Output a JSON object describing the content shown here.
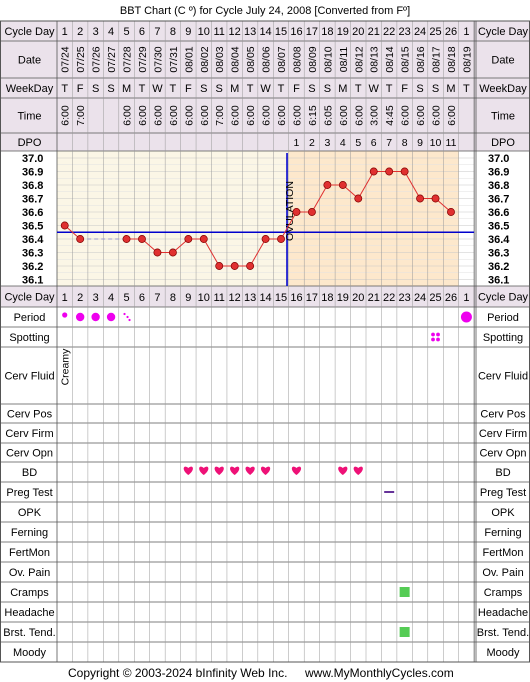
{
  "title": "BBT Chart (C º) for Cycle July 24, 2008  [Converted from Fº]",
  "copyright": "Copyright © 2003-2024 bInfinity Web Inc.",
  "site": "www.MyMonthlyCycles.com",
  "ovulation_label": "OVULATION",
  "row_labels": {
    "cycle_day": "Cycle Day",
    "date": "Date",
    "weekday": "WeekDay",
    "time": "Time",
    "dpo": "DPO",
    "period": "Period",
    "spotting": "Spotting",
    "cerv_fluid": "Cerv Fluid",
    "cerv_pos": "Cerv Pos",
    "cerv_firm": "Cerv Firm",
    "cerv_opn": "Cerv Opn",
    "bd": "BD",
    "preg_test": "Preg Test",
    "opk": "OPK",
    "ferning": "Ferning",
    "fertmon": "FertMon",
    "ov_pain": "Ov. Pain",
    "cramps": "Cramps",
    "headache": "Headache",
    "brst_tend": "Brst. Tend.",
    "moody": "Moody"
  },
  "cycle_days": [
    "1",
    "2",
    "3",
    "4",
    "5",
    "6",
    "7",
    "8",
    "9",
    "10",
    "11",
    "12",
    "13",
    "14",
    "15",
    "16",
    "17",
    "18",
    "19",
    "20",
    "21",
    "22",
    "23",
    "24",
    "25",
    "26",
    "1"
  ],
  "dates": [
    "07/24",
    "07/25",
    "07/26",
    "07/27",
    "07/28",
    "07/29",
    "07/30",
    "07/31",
    "08/01",
    "08/02",
    "08/03",
    "08/04",
    "08/05",
    "08/06",
    "08/07",
    "08/08",
    "08/09",
    "08/10",
    "08/11",
    "08/12",
    "08/13",
    "08/14",
    "08/15",
    "08/16",
    "08/17",
    "08/18",
    "08/19"
  ],
  "weekdays": [
    "T",
    "F",
    "S",
    "S",
    "M",
    "T",
    "W",
    "T",
    "F",
    "S",
    "S",
    "M",
    "T",
    "W",
    "T",
    "F",
    "S",
    "S",
    "M",
    "T",
    "W",
    "T",
    "F",
    "S",
    "S",
    "M",
    "T"
  ],
  "times": [
    "6:00",
    "7:00",
    "",
    "",
    "6:00",
    "6:00",
    "6:00",
    "6:00",
    "6:00",
    "6:00",
    "7:00",
    "6:00",
    "6:00",
    "6:00",
    "6:00",
    "6:00",
    "6:15",
    "6:05",
    "6:00",
    "6:00",
    "3:00",
    "4:45",
    "6:00",
    "6:00",
    "6:00",
    "6:00",
    ""
  ],
  "dpo": [
    "",
    "",
    "",
    "",
    "",
    "",
    "",
    "",
    "",
    "",
    "",
    "",
    "",
    "",
    "",
    "1",
    "2",
    "3",
    "4",
    "5",
    "6",
    "7",
    "8",
    "9",
    "10",
    "11",
    ""
  ],
  "cerv_fluid": [
    "Creamy",
    "",
    "",
    "",
    "",
    "",
    "",
    "",
    "",
    "",
    "",
    "",
    "",
    "",
    "",
    "",
    "",
    "",
    "",
    "",
    "",
    "",
    "",
    "",
    "",
    "",
    ""
  ],
  "temp_axis": [
    "37.0",
    "36.9",
    "36.8",
    "36.7",
    "36.6",
    "36.5",
    "36.4",
    "36.3",
    "36.2",
    "36.1"
  ],
  "colors": {
    "header_bg": "#ebe2eb",
    "luteal_bg": "#fde8cc",
    "follicular_bg": "#fbf6e6",
    "temp_line": "#e03030",
    "coverline": "#0000cc",
    "period": "#ee00ee",
    "bd": "#ee1177",
    "preg_test": "#663399",
    "symptom": "#55cc55"
  },
  "chart_data": {
    "type": "line",
    "title": "BBT Chart (C º) for Cycle July 24, 2008  [Converted from Fº]",
    "x": [
      "1",
      "2",
      "3",
      "4",
      "5",
      "6",
      "7",
      "8",
      "9",
      "10",
      "11",
      "12",
      "13",
      "14",
      "15",
      "16",
      "17",
      "18",
      "19",
      "20",
      "21",
      "22",
      "23",
      "24",
      "25",
      "26",
      "27"
    ],
    "xlabel": "Cycle Day",
    "ylabel": "",
    "ylim": [
      36.1,
      37.0
    ],
    "series": [
      {
        "values": [
          36.5,
          36.4,
          null,
          null,
          36.4,
          36.4,
          36.3,
          36.3,
          36.4,
          36.4,
          36.2,
          36.2,
          36.2,
          36.4,
          36.4,
          36.6,
          36.6,
          36.8,
          36.8,
          36.7,
          36.9,
          36.9,
          36.9,
          36.7,
          36.7,
          36.6,
          null
        ]
      }
    ],
    "coverline": 36.45,
    "ovulation_day": 15,
    "period_days": {
      "1": "light",
      "2": "medium",
      "3": "medium",
      "4": "medium",
      "5": "spotting",
      "27": "heavy"
    },
    "spotting_days": [
      25
    ],
    "bd_days": [
      9,
      10,
      11,
      12,
      13,
      14,
      16,
      19,
      20
    ],
    "preg_test_days": [
      22
    ],
    "cramps_days": [
      23
    ],
    "brst_tend_days": [
      23
    ]
  }
}
